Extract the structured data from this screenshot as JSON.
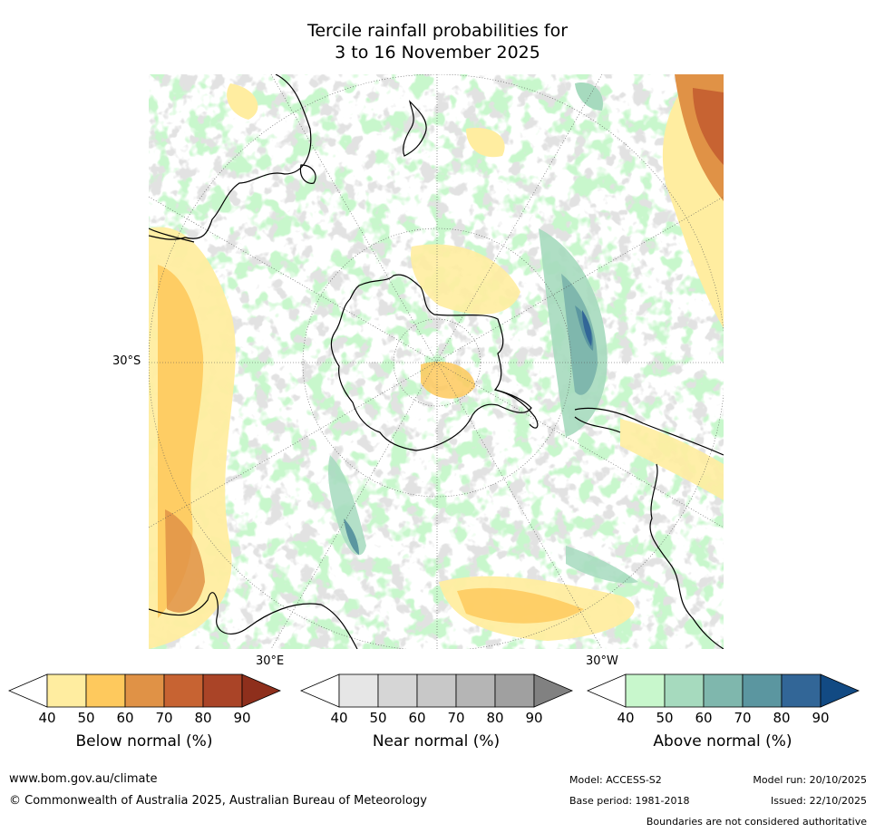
{
  "title_line1": "Tercile rainfall probabilities for",
  "title_line2": "3 to 16 November 2025",
  "map": {
    "lat_label": "30°S",
    "lon_label_east": "30°E",
    "lon_label_west": "30°W"
  },
  "colorbars": [
    {
      "label": "Below normal (%)",
      "ticks": [
        "40",
        "50",
        "60",
        "70",
        "80",
        "90"
      ],
      "colors": [
        "#ffeda0",
        "#fec95d",
        "#e09246",
        "#c76332",
        "#aa4427",
        "#8e2f1c"
      ]
    },
    {
      "label": "Near normal (%)",
      "ticks": [
        "40",
        "50",
        "60",
        "70",
        "80",
        "90"
      ],
      "colors": [
        "#e6e6e6",
        "#d6d6d6",
        "#c8c8c8",
        "#b5b5b5",
        "#a0a0a0",
        "#818181"
      ]
    },
    {
      "label": "Above normal (%)",
      "ticks": [
        "40",
        "50",
        "60",
        "70",
        "80",
        "90"
      ],
      "colors": [
        "#c8f7cc",
        "#a6dabe",
        "#7fb7ad",
        "#5b96a0",
        "#326697",
        "#124a83"
      ]
    }
  ],
  "footer": {
    "url": "www.bom.gov.au/climate",
    "copyright": "© Commonwealth of Australia 2025, Australian Bureau of Meteorology",
    "model": "Model: ACCESS-S2",
    "base_period": "Base period: 1981-2018",
    "model_run": "Model run: 20/10/2025",
    "issued": "Issued: 22/10/2025",
    "disclaimer": "Boundaries are not considered authoritative"
  }
}
